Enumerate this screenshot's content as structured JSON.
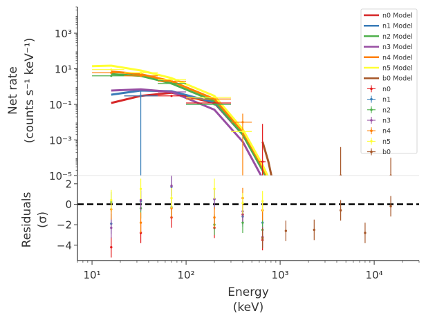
{
  "chart_data": [
    {
      "type": "line",
      "panel": "spectrum",
      "ylabel_lines": [
        "Net rate",
        "(counts s⁻¹ keV⁻¹)"
      ],
      "x_scale": "log",
      "y_scale": "log",
      "xlim": [
        7,
        30000
      ],
      "ylim": [
        1e-05,
        30000
      ],
      "y_ticks": [
        {
          "value": 1e-05,
          "label": "10⁻⁵"
        },
        {
          "value": 0.001,
          "label": "10⁻³"
        },
        {
          "value": 0.1,
          "label": "10⁻¹"
        },
        {
          "value": 10,
          "label": "10¹"
        },
        {
          "value": 1000,
          "label": "10³"
        }
      ],
      "grid": false,
      "legend_position": "top-right",
      "models": [
        {
          "name": "n0 Model",
          "color": "#d62728",
          "x": [
            16,
            33,
            70,
            200,
            400,
            650,
            900
          ],
          "y": [
            0.12,
            0.3,
            0.45,
            0.12,
            0.002,
            2e-05,
            5e-07
          ]
        },
        {
          "name": "n1 Model",
          "color": "#3a7cb8",
          "x": [
            16,
            33,
            70,
            200,
            400,
            650,
            900
          ],
          "y": [
            0.35,
            0.6,
            0.55,
            0.13,
            0.002,
            2e-05,
            5e-07
          ]
        },
        {
          "name": "n2 Model",
          "color": "#4daf4a",
          "x": [
            16,
            33,
            70,
            200,
            400,
            650,
            900
          ],
          "y": [
            5,
            4,
            1.5,
            0.15,
            0.002,
            2e-05,
            5e-07
          ]
        },
        {
          "name": "n3 Model",
          "color": "#984ea3",
          "x": [
            16,
            33,
            70,
            200,
            400,
            650,
            900
          ],
          "y": [
            0.6,
            0.7,
            0.5,
            0.05,
            0.0008,
            7e-06,
            2e-07
          ]
        },
        {
          "name": "n4 Model",
          "color": "#ff7f00",
          "x": [
            16,
            33,
            70,
            200,
            400,
            650,
            900
          ],
          "y": [
            7,
            5,
            2,
            0.2,
            0.003,
            3e-05,
            8e-07
          ]
        },
        {
          "name": "n5 Model",
          "color": "#ffff33",
          "x": [
            10,
            16,
            33,
            70,
            200,
            400,
            650,
            900
          ],
          "y": [
            14,
            15,
            8,
            3,
            0.3,
            0.004,
            4e-05,
            1e-06
          ]
        },
        {
          "name": "b0 Model",
          "color": "#a65628",
          "x": [
            650,
            750,
            900
          ],
          "y": [
            0.0008,
            6e-05,
            5e-07
          ]
        }
      ],
      "data_points": [
        {
          "name": "n0",
          "color": "#e41a1c",
          "points": [
            {
              "x": 33,
              "y": 0.3,
              "xl": 22,
              "xh": 50
            },
            {
              "x": 70,
              "y": 0.3,
              "xl": 50,
              "xh": 100
            },
            {
              "x": 200,
              "y": 0.12,
              "xl": 100,
              "xh": 300
            },
            {
              "x": 650,
              "y": 6e-05,
              "xl": 600,
              "xh": 700,
              "yl": 1e-05,
              "yh": 0.008
            }
          ]
        },
        {
          "name": "n1",
          "color": "#377eb8",
          "points": [
            {
              "x": 33,
              "y": 0.3,
              "xl": 22,
              "xh": 50,
              "yl": 1e-05,
              "yh": 0.6
            },
            {
              "x": 200,
              "y": 0.1,
              "xl": 100,
              "xh": 300
            }
          ]
        },
        {
          "name": "n2",
          "color": "#4daf4a",
          "points": [
            {
              "x": 16,
              "y": 4,
              "xl": 10,
              "xh": 22
            },
            {
              "x": 70,
              "y": 1.5,
              "xl": 50,
              "xh": 100
            },
            {
              "x": 200,
              "y": 0.1,
              "xl": 100,
              "xh": 300
            }
          ]
        },
        {
          "name": "n3",
          "color": "#984ea3",
          "points": [
            {
              "x": 70,
              "y": 0.5,
              "xl": 50,
              "xh": 100
            }
          ]
        },
        {
          "name": "n4",
          "color": "#ff7f00",
          "points": [
            {
              "x": 16,
              "y": 6,
              "xl": 10,
              "xh": 22
            },
            {
              "x": 33,
              "y": 4,
              "xl": 22,
              "xh": 50
            },
            {
              "x": 70,
              "y": 2,
              "xl": 50,
              "xh": 100
            },
            {
              "x": 200,
              "y": 0.2,
              "xl": 100,
              "xh": 300
            },
            {
              "x": 400,
              "y": 0.01,
              "xl": 300,
              "xh": 500,
              "yl": 1e-05,
              "yh": 0.03
            }
          ]
        },
        {
          "name": "n5",
          "color": "#ffff33",
          "points": [
            {
              "x": 16,
              "y": 9,
              "xl": 10,
              "xh": 22
            },
            {
              "x": 33,
              "y": 6,
              "xl": 22,
              "xh": 50
            },
            {
              "x": 70,
              "y": 2.5,
              "xl": 50,
              "xh": 100
            },
            {
              "x": 200,
              "y": 0.25,
              "xl": 100,
              "xh": 300
            },
            {
              "x": 400,
              "y": 0.003,
              "xl": 300,
              "xh": 500
            }
          ]
        },
        {
          "name": "b0",
          "color": "#a65628",
          "points": [
            {
              "x": 4400,
              "y": 1e-05,
              "yl": 1e-05,
              "yh": 0.0004
            },
            {
              "x": 15000,
              "y": 1e-05,
              "yl": 1e-05,
              "yh": 0.0001
            }
          ]
        }
      ]
    },
    {
      "type": "scatter",
      "panel": "residuals",
      "xlabel_lines": [
        "Energy",
        "(keV)"
      ],
      "ylabel_lines": [
        "Residuals",
        "(σ)"
      ],
      "x_scale": "log",
      "xlim": [
        7,
        30000
      ],
      "ylim": [
        -5.5,
        2.8
      ],
      "y_ticks": [
        {
          "value": 2,
          "label": "2"
        },
        {
          "value": 0,
          "label": "0"
        },
        {
          "value": -2,
          "label": "−2"
        },
        {
          "value": -4,
          "label": "−4"
        }
      ],
      "x_ticks": [
        {
          "value": 10,
          "label": "10¹"
        },
        {
          "value": 100,
          "label": "10²"
        },
        {
          "value": 1000,
          "label": "10³"
        },
        {
          "value": 10000,
          "label": "10⁴"
        }
      ],
      "reference_line": 0,
      "series": [
        {
          "name": "n0",
          "color": "#e41a1c",
          "x": [
            16,
            33,
            70,
            200,
            400,
            650
          ],
          "y": [
            -4.2,
            -2.8,
            -1.3,
            -2.3,
            -1.0,
            -3.5
          ]
        },
        {
          "name": "n1",
          "color": "#377eb8",
          "x": [
            16,
            33,
            70,
            200,
            400,
            650
          ],
          "y": [
            -1.9,
            0.3,
            1.7,
            0.5,
            -1.2,
            -1.8
          ]
        },
        {
          "name": "n2",
          "color": "#4daf4a",
          "x": [
            16,
            33,
            70,
            200,
            400,
            650
          ],
          "y": [
            0.2,
            -0.4,
            -0.3,
            -2.0,
            -1.8,
            -2.5
          ]
        },
        {
          "name": "n3",
          "color": "#984ea3",
          "x": [
            16,
            33,
            70,
            200,
            400,
            650
          ],
          "y": [
            -2.3,
            0.4,
            1.8,
            0.5,
            -0.7,
            -3.2
          ]
        },
        {
          "name": "n4",
          "color": "#ff7f00",
          "x": [
            16,
            33,
            70,
            200,
            400,
            650
          ],
          "y": [
            -0.5,
            -1.8,
            -0.4,
            -1.3,
            0.6,
            -0.6
          ]
        },
        {
          "name": "n5",
          "color": "#ffff33",
          "x": [
            16,
            33,
            70,
            200,
            400,
            650
          ],
          "y": [
            0.4,
            1.5,
            0.6,
            1.5,
            0.1,
            0.3
          ]
        },
        {
          "name": "b0",
          "color": "#a65628",
          "x": [
            650,
            1150,
            2300,
            4400,
            8000,
            15000
          ],
          "y": [
            -3.3,
            -2.6,
            -2.5,
            -0.6,
            -2.8,
            -0.2
          ]
        }
      ]
    }
  ]
}
